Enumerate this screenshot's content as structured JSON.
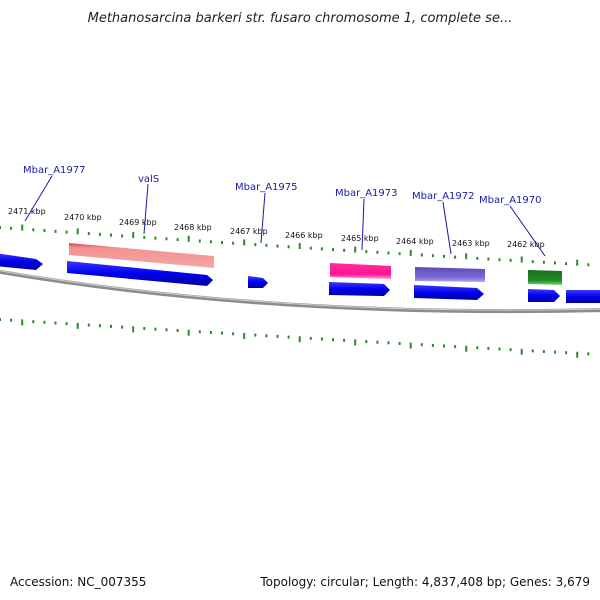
{
  "title": "Methanosarcina barkeri str. fusaro chromosome 1, complete se...",
  "footer": {
    "accession": "Accession: NC_007355",
    "summary": "Topology: circular; Length: 4,837,408 bp; Genes: 3,679"
  },
  "ruler": {
    "labels": [
      "2471 kbp",
      "2470 kbp",
      "2469 kbp",
      "2468 kbp",
      "2467 kbp",
      "2466 kbp",
      "2465 kbp",
      "2464 kbp",
      "2463 kbp",
      "2462 kbp"
    ]
  },
  "gene_labels": [
    "Mbar_A1977",
    "valS",
    "Mbar_A1975",
    "Mbar_A1973",
    "Mbar_A1972",
    "Mbar_A1970"
  ],
  "colors": {
    "tick": "#2a8a2a",
    "backbone": "#8c8c8c",
    "cds": "#0000ee",
    "valS": "#f08080",
    "feature_pink": "#ff1493",
    "feature_purple": "#6a5acd",
    "feature_green": "#228b22",
    "label": "#1a1aa6"
  }
}
